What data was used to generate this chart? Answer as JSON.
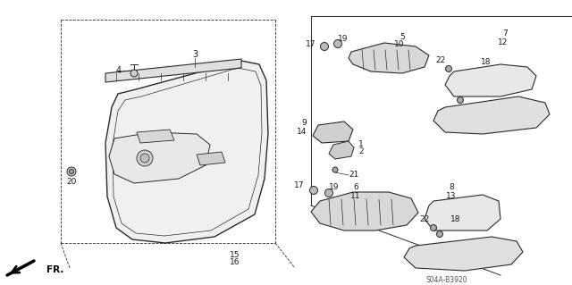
{
  "bg_color": "#ffffff",
  "line_color": "#2a2a2a",
  "label_color": "#1a1a1a",
  "diagram_code": "S04A-B3920",
  "fr_label": "FR.",
  "figsize": [
    6.4,
    3.19
  ],
  "dpi": 100
}
